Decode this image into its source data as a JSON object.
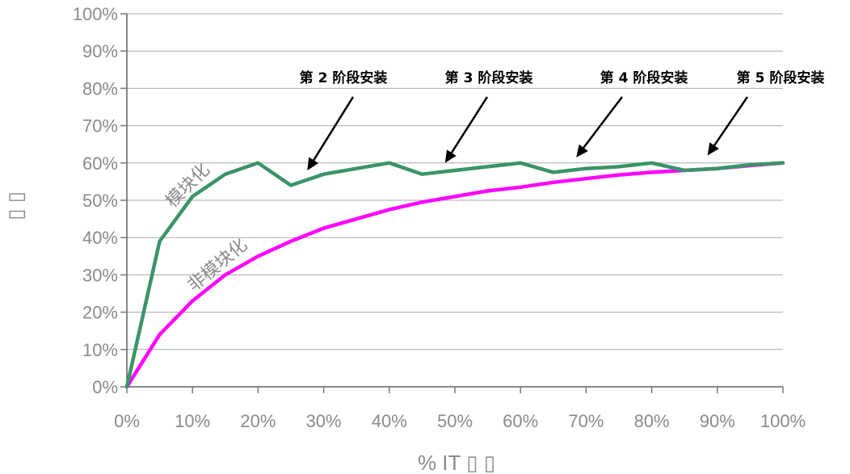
{
  "chart_data": {
    "type": "line",
    "xlabel": "% IT ▯ ▯",
    "ylabel": "▯ ▯",
    "x_ticks": [
      "0%",
      "10%",
      "20%",
      "30%",
      "40%",
      "50%",
      "60%",
      "70%",
      "80%",
      "90%",
      "100%"
    ],
    "y_ticks": [
      "0%",
      "10%",
      "20%",
      "30%",
      "40%",
      "50%",
      "60%",
      "70%",
      "80%",
      "90%",
      "100%"
    ],
    "xlim": [
      0,
      100
    ],
    "ylim": [
      0,
      100
    ],
    "grid": "horizontal",
    "series": [
      {
        "name": "模块化",
        "color": "#3a9467",
        "points": [
          [
            0,
            0
          ],
          [
            5,
            39
          ],
          [
            10,
            51
          ],
          [
            15,
            57
          ],
          [
            20,
            60
          ],
          [
            25,
            54
          ],
          [
            30,
            57
          ],
          [
            35,
            58.5
          ],
          [
            40,
            60
          ],
          [
            45,
            57
          ],
          [
            50,
            58
          ],
          [
            55,
            59
          ],
          [
            60,
            60
          ],
          [
            65,
            57.5
          ],
          [
            70,
            58.5
          ],
          [
            75,
            59
          ],
          [
            80,
            60
          ],
          [
            85,
            58
          ],
          [
            90,
            58.5
          ],
          [
            95,
            59.5
          ],
          [
            100,
            60
          ]
        ]
      },
      {
        "name": "非模块化",
        "color": "#ff00ff",
        "points": [
          [
            0,
            0
          ],
          [
            5,
            14
          ],
          [
            10,
            23
          ],
          [
            15,
            30
          ],
          [
            20,
            35
          ],
          [
            25,
            39
          ],
          [
            30,
            42.5
          ],
          [
            35,
            45
          ],
          [
            40,
            47.5
          ],
          [
            45,
            49.5
          ],
          [
            50,
            51
          ],
          [
            55,
            52.5
          ],
          [
            60,
            53.5
          ],
          [
            65,
            54.8
          ],
          [
            70,
            55.8
          ],
          [
            75,
            56.8
          ],
          [
            80,
            57.5
          ],
          [
            85,
            58
          ],
          [
            90,
            58.5
          ],
          [
            95,
            59.3
          ],
          [
            100,
            60
          ]
        ]
      }
    ],
    "annotations": [
      {
        "text": "第 2 阶段安装",
        "x": 27.5,
        "y": 58
      },
      {
        "text": "第 3 阶段安装",
        "x": 48.5,
        "y": 60
      },
      {
        "text": "第 4  阶段安装",
        "x": 68.5,
        "y": 61.5
      },
      {
        "text": "第 5  阶段安装",
        "x": 88.5,
        "y": 62
      }
    ]
  }
}
